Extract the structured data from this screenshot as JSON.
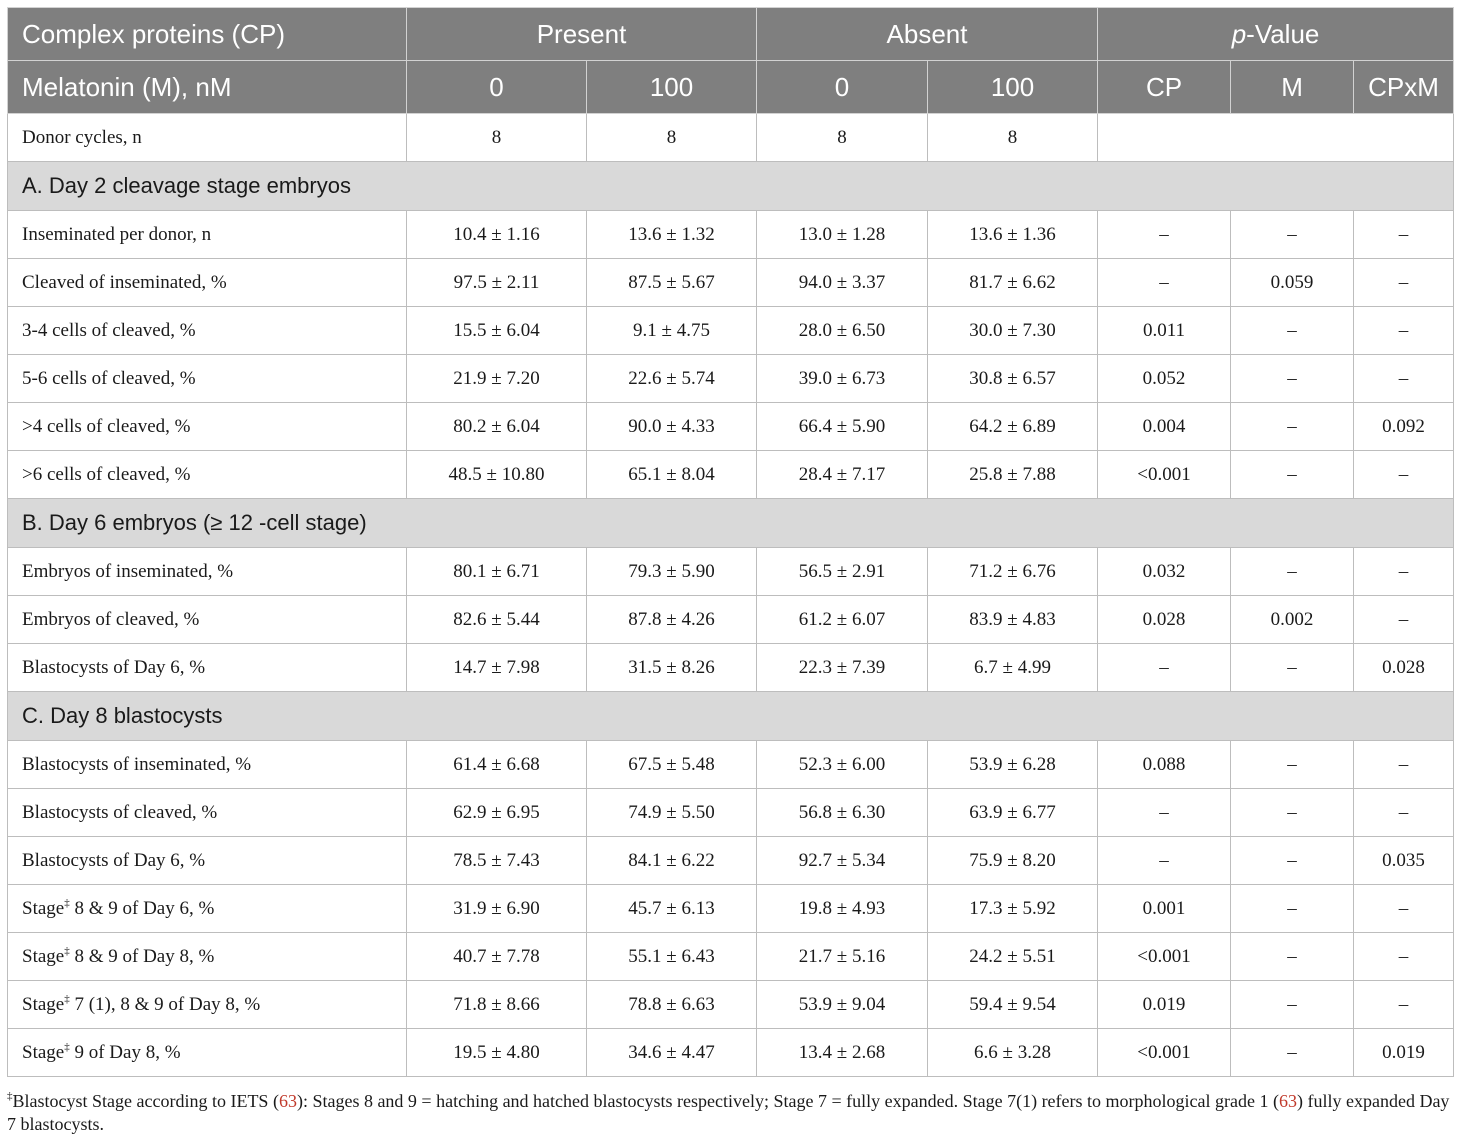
{
  "header": {
    "row1": {
      "label": "Complex proteins (CP)",
      "present": "Present",
      "absent": "Absent",
      "pvalue_p": "p",
      "pvalue_rest": "-Value"
    },
    "row2": {
      "label": "Melatonin (M), nM",
      "cols": [
        "0",
        "100",
        "0",
        "100",
        "CP",
        "M",
        "CPxM"
      ]
    }
  },
  "donor_row": {
    "label": "Donor cycles, n",
    "values": [
      "8",
      "8",
      "8",
      "8"
    ]
  },
  "sections": [
    {
      "title": "A. Day 2 cleavage stage embryos",
      "rows": [
        {
          "label": "Inseminated per donor, n",
          "values": [
            "10.4 ± 1.16",
            "13.6 ± 1.32",
            "13.0 ± 1.28",
            "13.6 ± 1.36",
            "–",
            "–",
            "–"
          ]
        },
        {
          "label": "Cleaved of inseminated, %",
          "values": [
            "97.5 ± 2.11",
            "87.5 ± 5.67",
            "94.0 ± 3.37",
            "81.7 ± 6.62",
            "–",
            "0.059",
            "–"
          ]
        },
        {
          "label": "3-4 cells of cleaved, %",
          "values": [
            "15.5 ± 6.04",
            "9.1 ± 4.75",
            "28.0 ± 6.50",
            "30.0 ± 7.30",
            "0.011",
            "–",
            "–"
          ]
        },
        {
          "label": "5-6 cells of cleaved, %",
          "values": [
            "21.9 ± 7.20",
            "22.6 ± 5.74",
            "39.0 ± 6.73",
            "30.8 ± 6.57",
            "0.052",
            "–",
            "–"
          ]
        },
        {
          "label": ">4 cells of cleaved, %",
          "values": [
            "80.2 ± 6.04",
            "90.0 ± 4.33",
            "66.4 ± 5.90",
            "64.2 ± 6.89",
            "0.004",
            "–",
            "0.092"
          ]
        },
        {
          "label": ">6 cells of cleaved, %",
          "values": [
            "48.5 ± 10.80",
            "65.1 ± 8.04",
            "28.4 ± 7.17",
            "25.8 ± 7.88",
            "<0.001",
            "–",
            "–"
          ]
        }
      ]
    },
    {
      "title": "B. Day 6 embryos (≥ 12 -cell stage)",
      "rows": [
        {
          "label": "Embryos of inseminated, %",
          "values": [
            "80.1 ± 6.71",
            "79.3 ± 5.90",
            "56.5 ± 2.91",
            "71.2 ± 6.76",
            "0.032",
            "–",
            "–"
          ]
        },
        {
          "label": "Embryos of cleaved, %",
          "values": [
            "82.6 ± 5.44",
            "87.8 ± 4.26",
            "61.2 ± 6.07",
            "83.9 ± 4.83",
            "0.028",
            "0.002",
            "–"
          ]
        },
        {
          "label": "Blastocysts of Day 6, %",
          "values": [
            "14.7 ± 7.98",
            "31.5 ± 8.26",
            "22.3 ± 7.39",
            "6.7 ± 4.99",
            "–",
            "–",
            "0.028"
          ]
        }
      ]
    },
    {
      "title": "C. Day 8 blastocysts",
      "rows": [
        {
          "label": "Blastocysts of inseminated, %",
          "values": [
            "61.4 ± 6.68",
            "67.5 ± 5.48",
            "52.3 ± 6.00",
            "53.9 ± 6.28",
            "0.088",
            "–",
            "–"
          ]
        },
        {
          "label": "Blastocysts of cleaved, %",
          "values": [
            "62.9 ± 6.95",
            "74.9 ± 5.50",
            "56.8 ± 6.30",
            "63.9 ± 6.77",
            "–",
            "–",
            "–"
          ]
        },
        {
          "label": "Blastocysts of Day 6, %",
          "values": [
            "78.5 ± 7.43",
            "84.1 ± 6.22",
            "92.7 ± 5.34",
            "75.9 ± 8.20",
            "–",
            "–",
            "0.035"
          ]
        },
        {
          "label_pre": "Stage",
          "sup": "‡",
          "label_post": " 8 & 9 of Day 6, %",
          "values": [
            "31.9 ± 6.90",
            "45.7 ± 6.13",
            "19.8 ± 4.93",
            "17.3 ± 5.92",
            "0.001",
            "–",
            "–"
          ]
        },
        {
          "label_pre": "Stage",
          "sup": "‡",
          "label_post": " 8 & 9 of Day 8, %",
          "values": [
            "40.7 ± 7.78",
            "55.1 ± 6.43",
            "21.7 ± 5.16",
            "24.2 ± 5.51",
            "<0.001",
            "–",
            "–"
          ]
        },
        {
          "label_pre": "Stage",
          "sup": "‡",
          "label_post": " 7 (1), 8 & 9 of Day 8, %",
          "values": [
            "71.8 ± 8.66",
            "78.8 ± 6.63",
            "53.9 ± 9.04",
            "59.4 ± 9.54",
            "0.019",
            "–",
            "–"
          ]
        },
        {
          "label_pre": "Stage",
          "sup": "‡",
          "label_post": " 9 of Day 8, %",
          "values": [
            "19.5 ± 4.80",
            "34.6 ± 4.47",
            "13.4 ± 2.68",
            "6.6 ± 3.28",
            "<0.001",
            "–",
            "0.019"
          ]
        }
      ]
    }
  ],
  "footnote": {
    "sup": "‡",
    "part1": "Blastocyst Stage according to IETS (",
    "ref1": "63",
    "part2": "): Stages 8 and 9 = hatching and hatched blastocysts respectively; Stage 7 = fully expanded. Stage 7(1) refers to morphological grade 1 (",
    "ref2": "63",
    "part3": ") fully expanded Day 7 blastocysts."
  }
}
